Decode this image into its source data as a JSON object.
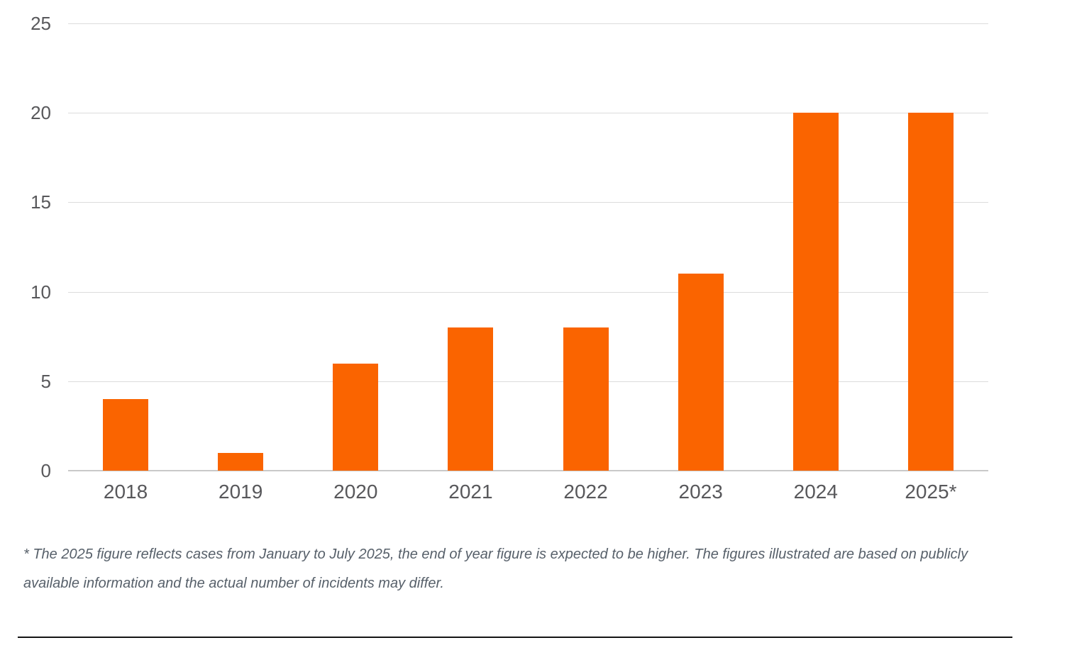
{
  "chart_data": {
    "type": "bar",
    "categories": [
      "2018",
      "2019",
      "2020",
      "2021",
      "2022",
      "2023",
      "2024",
      "2025*"
    ],
    "values": [
      4,
      1,
      6,
      8,
      8,
      11,
      20,
      20
    ],
    "title": "",
    "xlabel": "",
    "ylabel": "",
    "ylim": [
      0,
      25
    ],
    "yticks": [
      0,
      5,
      10,
      15,
      20,
      25
    ],
    "grid": true,
    "legend": false,
    "bar_color": "#fa6400"
  },
  "colors": {
    "bar": "#fa6400",
    "gridline": "#dcdcdc",
    "baseline": "#c9c9c9",
    "axis_label": "#58585b",
    "footnote_text": "#57606a",
    "divider": "#141414"
  },
  "footnote": {
    "line1": "* The 2025 figure reflects cases from January to July 2025, the end of year figure is expected to be higher. The figures illustrated are based on publicly",
    "line2": "available information and the actual number of incidents may differ."
  }
}
